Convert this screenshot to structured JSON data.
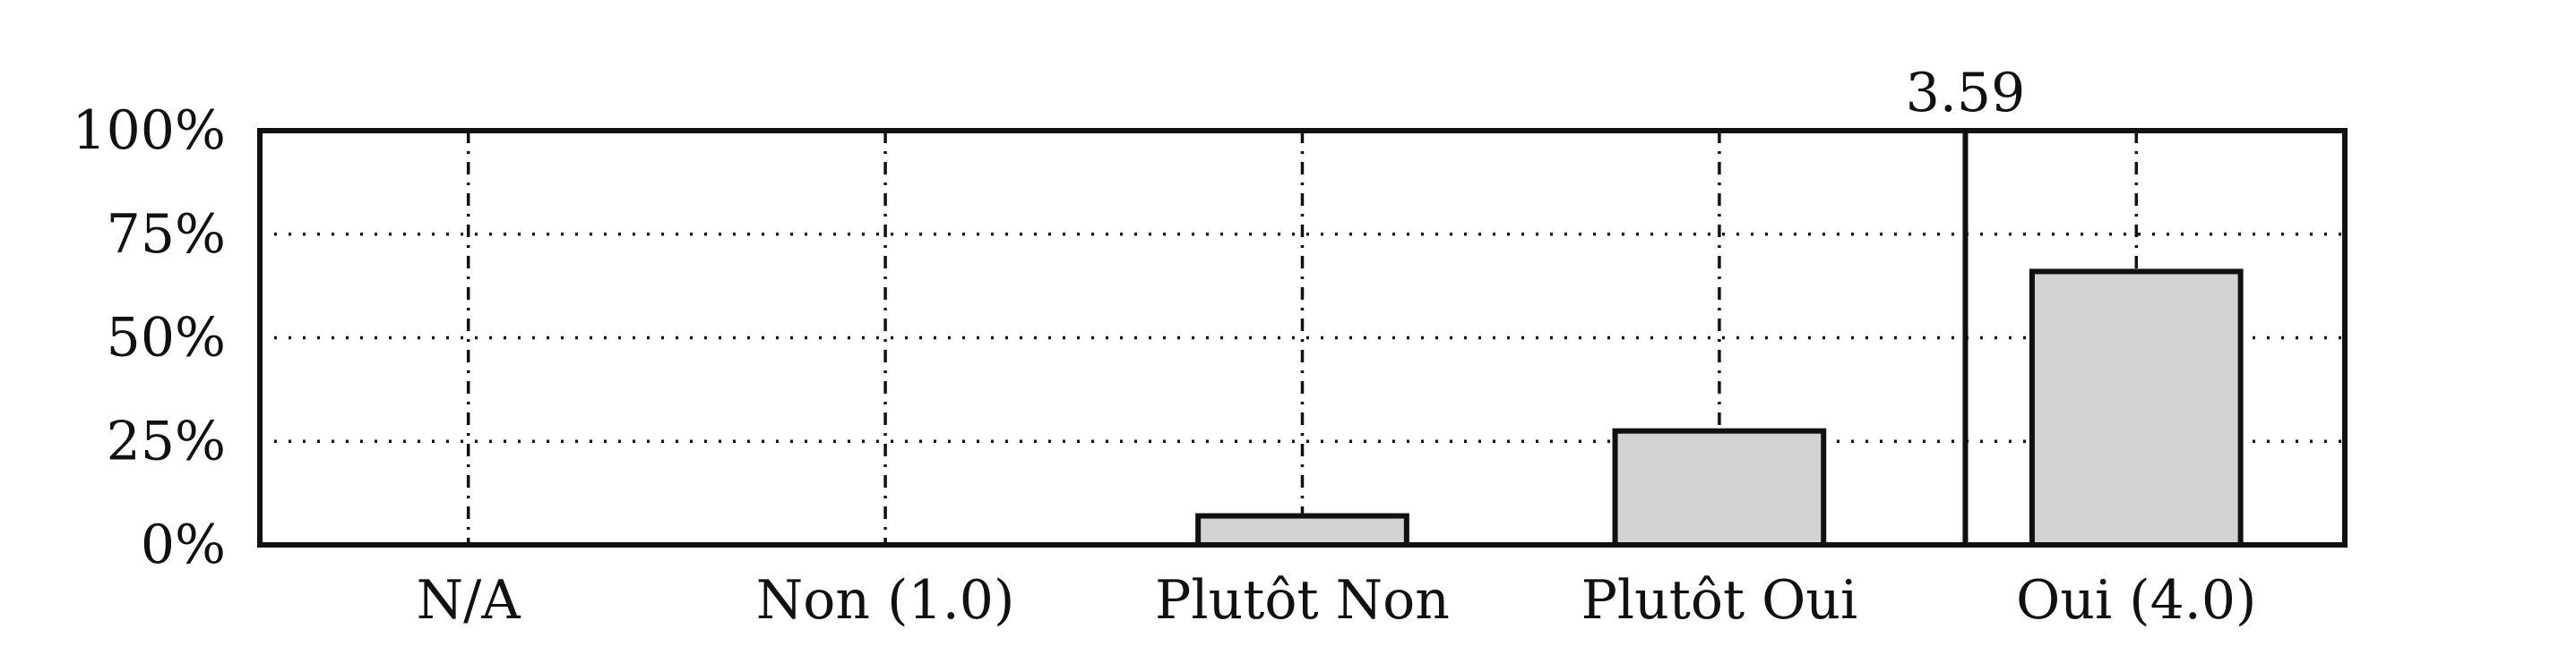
{
  "chart_data": {
    "type": "bar",
    "categories": [
      "N/A",
      "Non (1.0)",
      "Plutôt Non",
      "Plutôt Oui",
      "Oui (4.0)"
    ],
    "values": [
      0,
      0,
      7,
      27.5,
      66
    ],
    "ylim": [
      0,
      100
    ],
    "yticks": [
      0,
      25,
      50,
      75,
      100
    ],
    "ytick_labels": [
      "0%",
      "25%",
      "50%",
      "75%",
      "100%"
    ],
    "mean_value": 3.59,
    "mean_label": "3.59",
    "grid": true,
    "title": "",
    "xlabel": "",
    "ylabel": "",
    "bar_color": "#d3d3d3",
    "edge_color": "#111111"
  }
}
